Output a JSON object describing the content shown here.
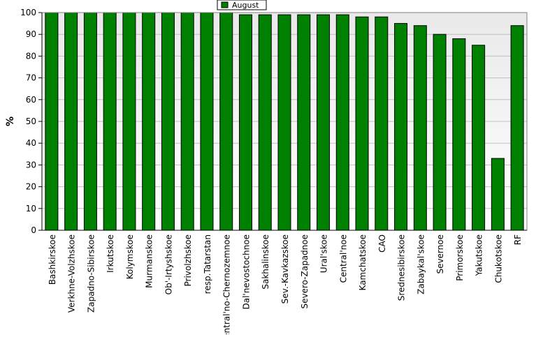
{
  "chart_data": {
    "type": "bar",
    "title": "",
    "xlabel": "",
    "ylabel": "%",
    "ylim": [
      0,
      100
    ],
    "yticks": [
      0,
      10,
      20,
      30,
      40,
      50,
      60,
      70,
      80,
      90,
      100
    ],
    "grid": true,
    "legend_position": "top-center",
    "categories": [
      "Bashkirskoe",
      "Verkhne-Volzhskoe",
      "Zapadno-Sibirskoe",
      "Irkutskoe",
      "Kolymskoe",
      "Murmanskoe",
      "Ob'-Irtyshskoe",
      "Privolzhskoe",
      "resp.Tatarstan",
      "Central'no-Chernozemnoe",
      "Dal'nevostochnoe",
      "Sakhalinskoe",
      "Sev.-Kavkazskoe",
      "Severo-Zapadnoe",
      "Ural'skoe",
      "Central'noe",
      "Kamchatskoe",
      "CAO",
      "Srednesibirskoe",
      "Zabaykal'skoe",
      "Severnoe",
      "Primorskoe",
      "Yakutskoe",
      "Chukotskoe",
      "RF"
    ],
    "series": [
      {
        "name": "August",
        "color": "#008000",
        "values": [
          100,
          100,
          100,
          100,
          100,
          100,
          100,
          100,
          100,
          100,
          99,
          99,
          99,
          99,
          99,
          99,
          98,
          98,
          95,
          94,
          90,
          88,
          85,
          33,
          94
        ]
      }
    ]
  }
}
